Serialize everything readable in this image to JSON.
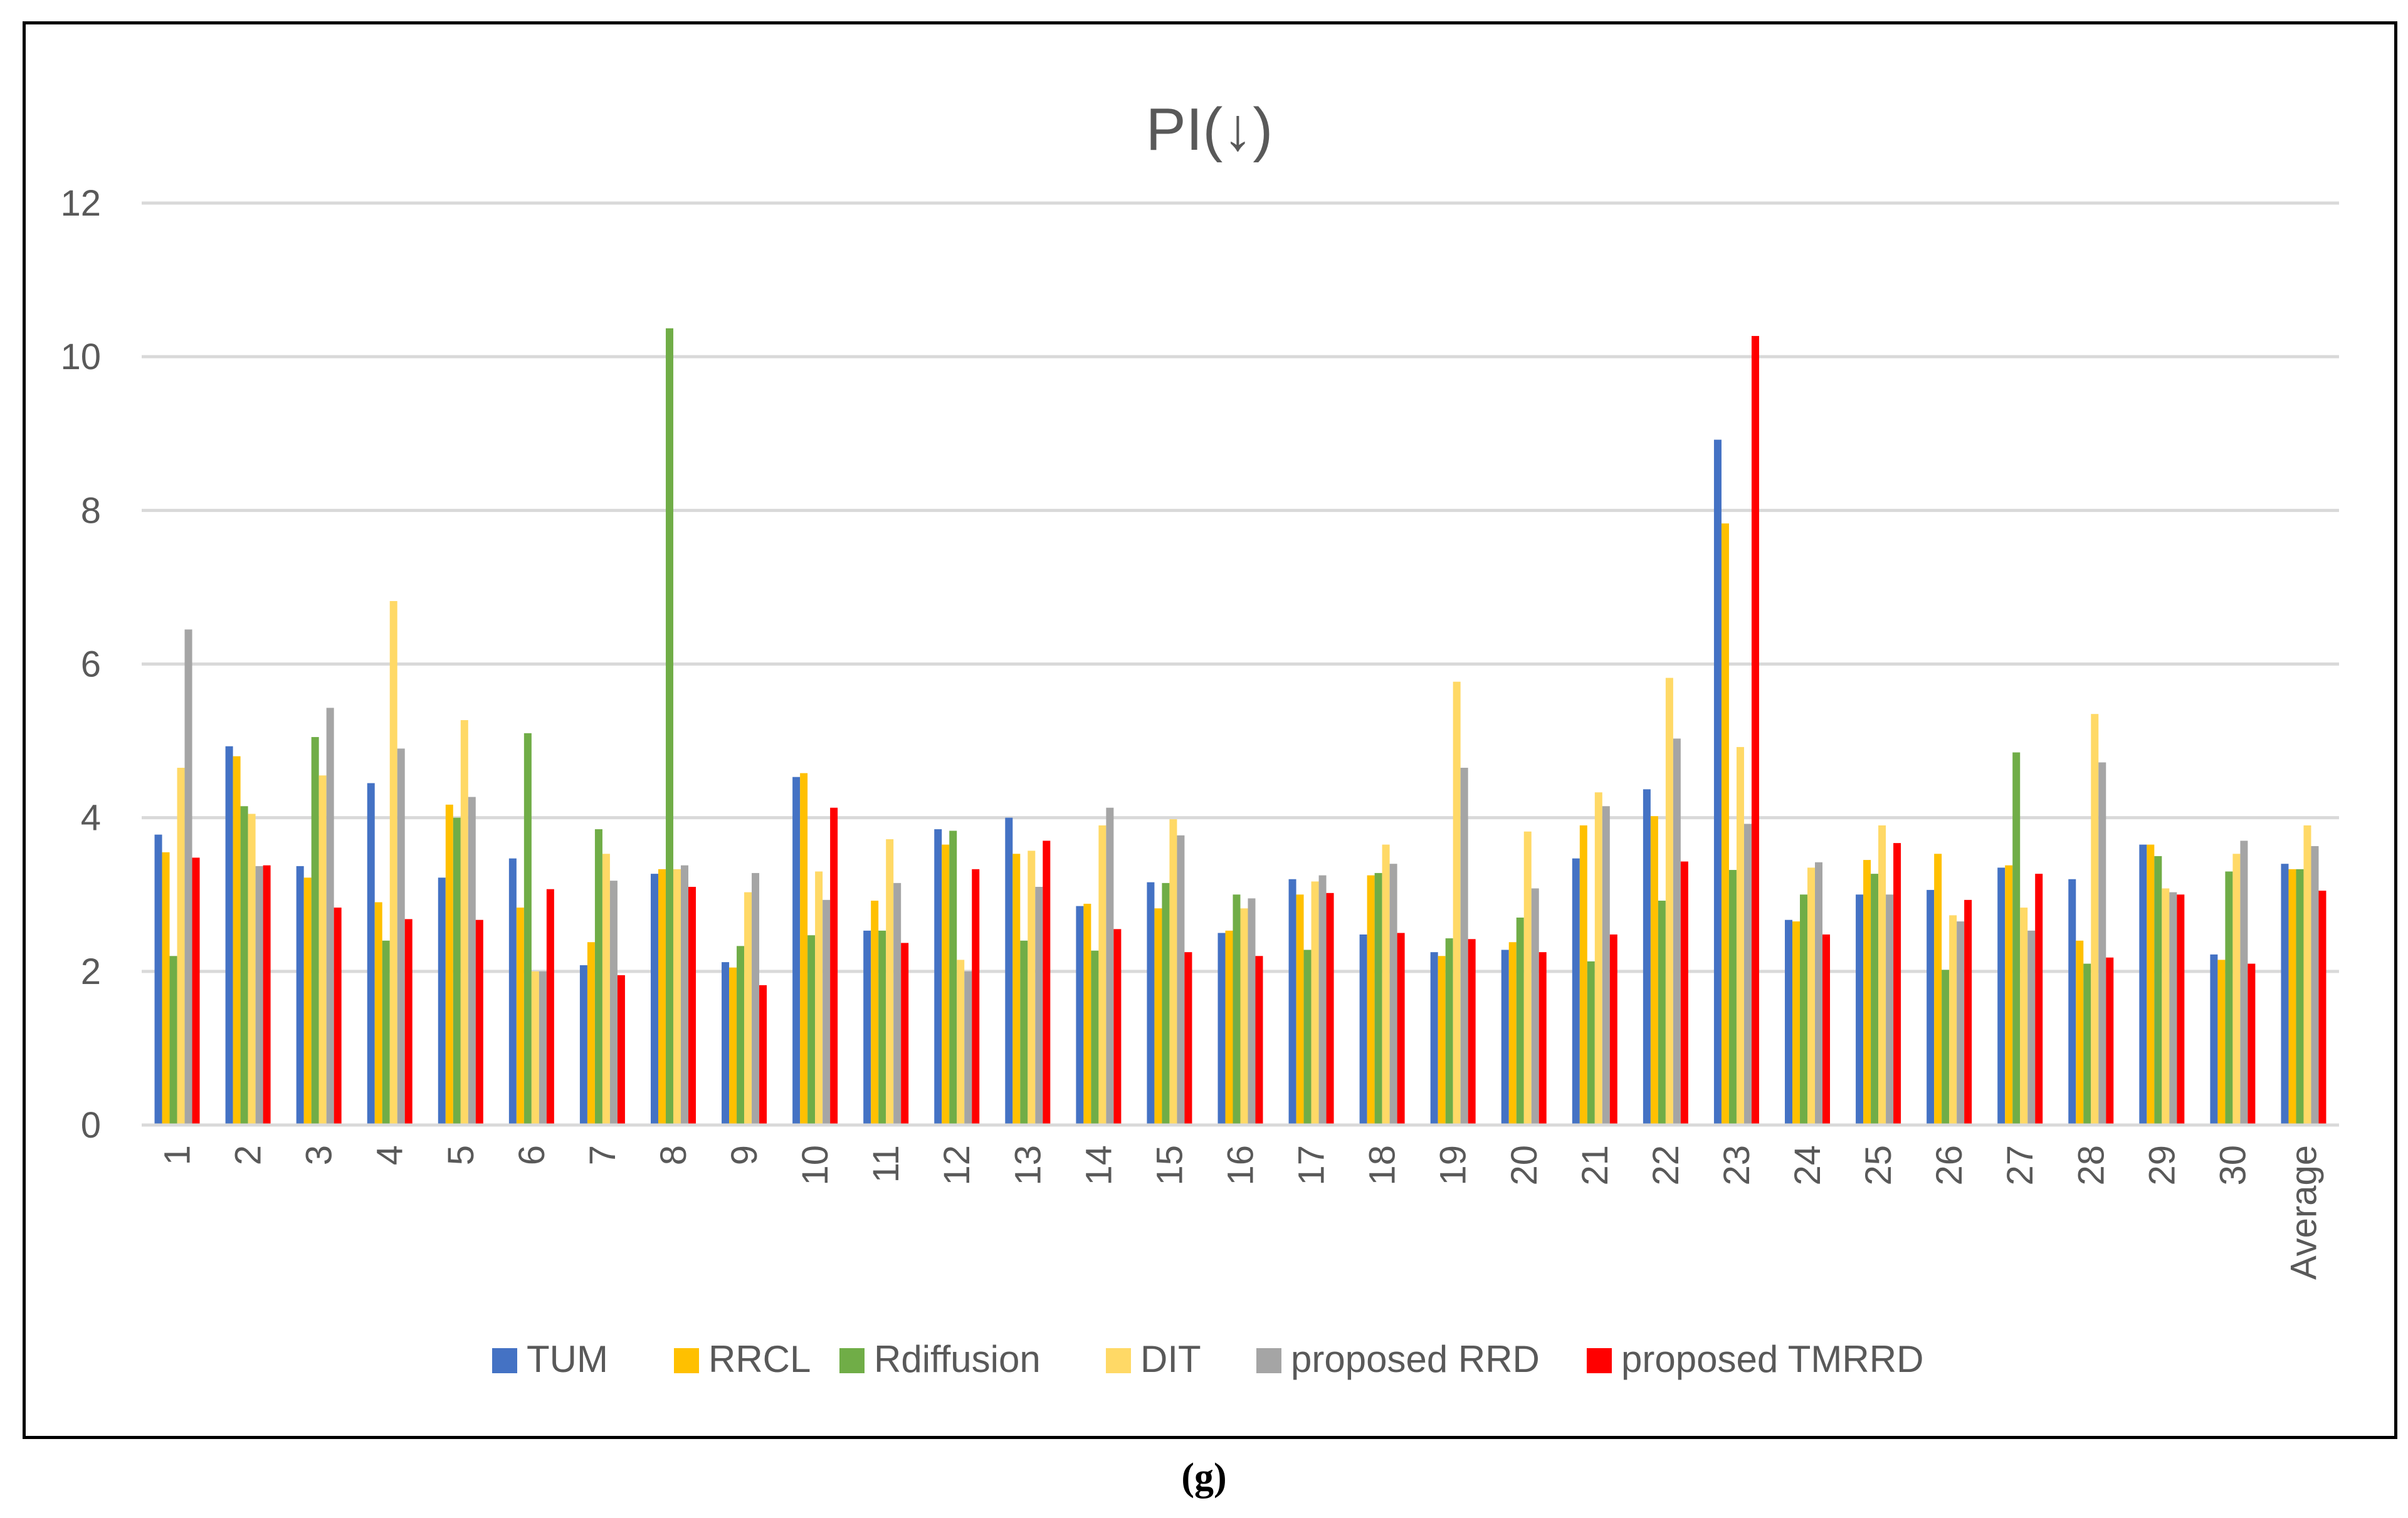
{
  "caption": "(g)",
  "chart_data": {
    "type": "bar",
    "title": "PI(↓)",
    "xlabel": "",
    "ylabel": "",
    "ylim": [
      0,
      12
    ],
    "yticks": [
      0,
      2,
      4,
      6,
      8,
      10,
      12
    ],
    "grid": true,
    "legend_position": "bottom",
    "categories": [
      "1",
      "2",
      "3",
      "4",
      "5",
      "6",
      "7",
      "8",
      "9",
      "10",
      "11",
      "12",
      "13",
      "14",
      "15",
      "16",
      "17",
      "18",
      "19",
      "20",
      "21",
      "22",
      "23",
      "24",
      "25",
      "26",
      "27",
      "28",
      "29",
      "30",
      "Average"
    ],
    "series": [
      {
        "name": "TUM",
        "color": "#4472C4",
        "values": [
          3.78,
          4.93,
          3.37,
          4.45,
          3.22,
          3.47,
          2.08,
          3.27,
          2.12,
          4.53,
          2.53,
          3.85,
          4.0,
          2.85,
          3.16,
          2.5,
          3.2,
          2.48,
          2.25,
          2.28,
          3.47,
          4.37,
          8.92,
          2.67,
          3.0,
          3.06,
          3.35,
          3.2,
          3.65,
          2.22,
          3.4
        ]
      },
      {
        "name": "RRCL",
        "color": "#FFC000",
        "values": [
          3.55,
          4.8,
          3.22,
          2.9,
          4.17,
          2.83,
          2.38,
          3.33,
          2.05,
          4.58,
          2.92,
          3.65,
          3.53,
          2.88,
          2.82,
          2.53,
          3.0,
          3.25,
          2.2,
          2.38,
          3.9,
          4.02,
          7.83,
          2.65,
          3.45,
          3.53,
          3.38,
          2.4,
          3.65,
          2.15,
          3.33
        ]
      },
      {
        "name": "Rdiffusion",
        "color": "#70AD47",
        "values": [
          2.2,
          4.15,
          5.05,
          2.4,
          4.0,
          5.1,
          3.85,
          10.37,
          2.33,
          2.47,
          2.53,
          3.83,
          2.4,
          2.27,
          3.15,
          3.0,
          2.28,
          3.28,
          2.43,
          2.7,
          2.13,
          2.92,
          3.32,
          3.0,
          3.27,
          2.02,
          4.85,
          2.1,
          3.5,
          3.3,
          3.33
        ]
      },
      {
        "name": "DIT",
        "color": "#FFD966",
        "values": [
          4.65,
          4.05,
          4.55,
          6.82,
          5.27,
          2.0,
          3.53,
          3.33,
          3.03,
          3.3,
          3.72,
          2.15,
          3.57,
          3.9,
          3.98,
          2.82,
          3.17,
          3.65,
          5.77,
          3.82,
          4.33,
          5.82,
          4.92,
          3.35,
          3.9,
          2.73,
          2.83,
          5.35,
          3.08,
          3.53,
          3.9
        ]
      },
      {
        "name": "proposed RRD",
        "color": "#A5A5A5",
        "values": [
          6.45,
          3.37,
          5.43,
          4.9,
          4.27,
          2.0,
          3.18,
          3.38,
          3.28,
          2.93,
          3.15,
          2.0,
          3.1,
          4.13,
          3.77,
          2.95,
          3.25,
          3.4,
          4.65,
          3.08,
          4.15,
          5.03,
          3.92,
          3.42,
          3.0,
          2.65,
          2.53,
          4.72,
          3.03,
          3.7,
          3.63
        ]
      },
      {
        "name": "proposed TMRRD",
        "color": "#FF0000",
        "values": [
          3.48,
          3.38,
          2.83,
          2.68,
          2.67,
          3.07,
          1.95,
          3.1,
          1.82,
          4.13,
          2.37,
          3.33,
          3.7,
          2.55,
          2.25,
          2.2,
          3.02,
          2.5,
          2.42,
          2.25,
          2.48,
          3.43,
          10.27,
          2.48,
          3.67,
          2.93,
          3.27,
          2.18,
          3.0,
          2.1,
          3.05
        ]
      }
    ]
  }
}
